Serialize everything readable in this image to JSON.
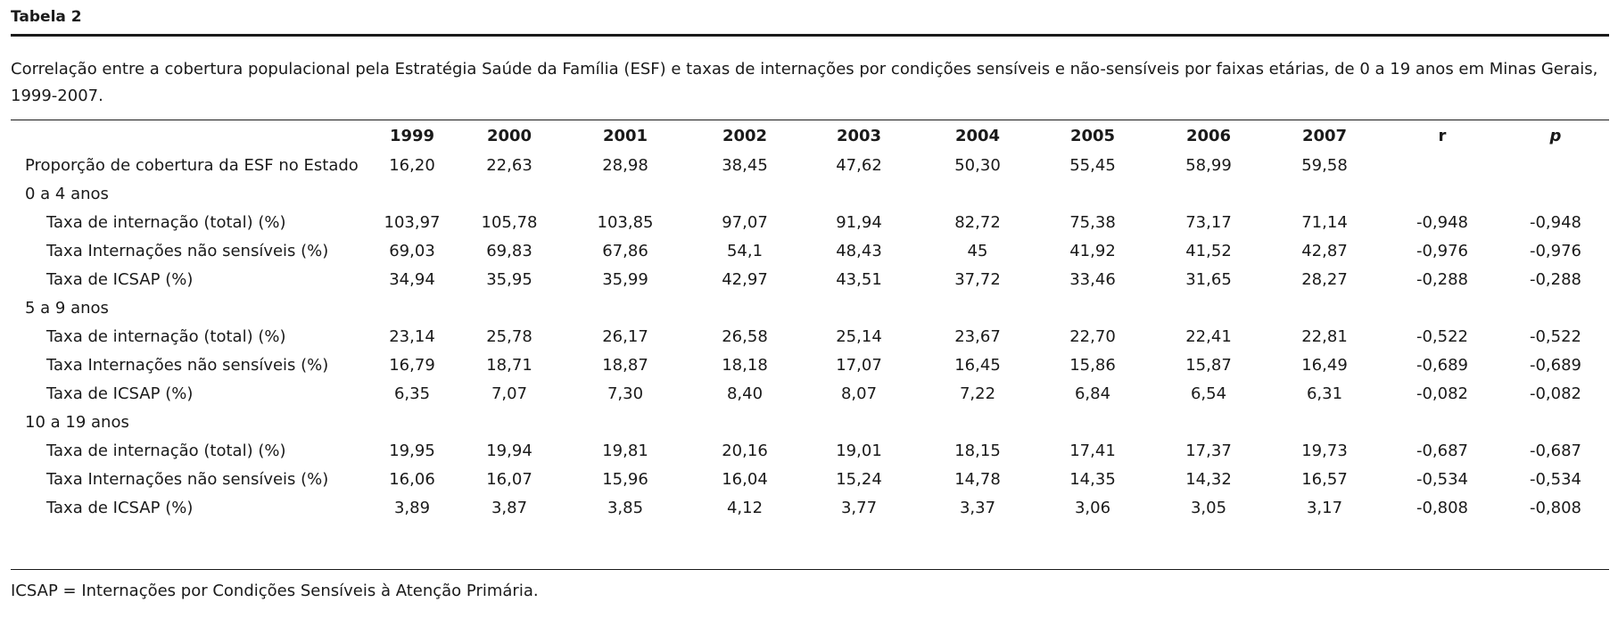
{
  "title": "Tabela 2",
  "caption": "Correlação entre a cobertura populacional pela Estratégia Saúde da Família (ESF) e taxas de internações por condições sensíveis e não-sensíveis por faixas etárias, de 0 a 19 anos em Minas Gerais, 1999-2007.",
  "headers": [
    "",
    "1999",
    "2000",
    "2001",
    "2002",
    "2003",
    "2004",
    "2005",
    "2006",
    "2007",
    "r",
    "p"
  ],
  "coverage": {
    "label": "Proporção de cobertura da ESF no Estado",
    "values": [
      "16,20",
      "22,63",
      "28,98",
      "38,45",
      "47,62",
      "50,30",
      "55,45",
      "58,99",
      "59,58",
      "",
      ""
    ]
  },
  "groups": [
    {
      "label": "0 a 4 anos",
      "rows": [
        {
          "label": "Taxa de internação (total) (%)",
          "values": [
            "103,97",
            "105,78",
            "103,85",
            "97,07",
            "91,94",
            "82,72",
            "75,38",
            "73,17",
            "71,14",
            "-0,948",
            "-0,948"
          ]
        },
        {
          "label": "Taxa Internações não sensíveis (%)",
          "values": [
            "69,03",
            "69,83",
            "67,86",
            "54,1",
            "48,43",
            "45",
            "41,92",
            "41,52",
            "42,87",
            "-0,976",
            "-0,976"
          ]
        },
        {
          "label": "Taxa de ICSAP (%)",
          "values": [
            "34,94",
            "35,95",
            "35,99",
            "42,97",
            "43,51",
            "37,72",
            "33,46",
            "31,65",
            "28,27",
            "-0,288",
            "-0,288"
          ]
        }
      ]
    },
    {
      "label": "5 a 9 anos",
      "rows": [
        {
          "label": "Taxa de internação (total) (%)",
          "values": [
            "23,14",
            "25,78",
            "26,17",
            "26,58",
            "25,14",
            "23,67",
            "22,70",
            "22,41",
            "22,81",
            "-0,522",
            "-0,522"
          ]
        },
        {
          "label": "Taxa Internações não sensíveis (%)",
          "values": [
            "16,79",
            "18,71",
            "18,87",
            "18,18",
            "17,07",
            "16,45",
            "15,86",
            "15,87",
            "16,49",
            "-0,689",
            "-0,689"
          ]
        },
        {
          "label": "Taxa de ICSAP (%)",
          "values": [
            "6,35",
            "7,07",
            "7,30",
            "8,40",
            "8,07",
            "7,22",
            "6,84",
            "6,54",
            "6,31",
            "-0,082",
            "-0,082"
          ]
        }
      ]
    },
    {
      "label": "10 a 19 anos",
      "rows": [
        {
          "label": "Taxa de internação (total) (%)",
          "values": [
            "19,95",
            "19,94",
            "19,81",
            "20,16",
            "19,01",
            "18,15",
            "17,41",
            "17,37",
            "19,73",
            "-0,687",
            "-0,687"
          ]
        },
        {
          "label": "Taxa Internações não sensíveis (%)",
          "values": [
            "16,06",
            "16,07",
            "15,96",
            "16,04",
            "15,24",
            "14,78",
            "14,35",
            "14,32",
            "16,57",
            "-0,534",
            "-0,534"
          ]
        },
        {
          "label": "Taxa de ICSAP (%)",
          "values": [
            "3,89",
            "3,87",
            "3,85",
            "4,12",
            "3,77",
            "3,37",
            "3,06",
            "3,05",
            "3,17",
            "-0,808",
            "-0,808"
          ]
        }
      ]
    }
  ],
  "footnote": "ICSAP = Internações por Condições Sensíveis à Atenção Primária."
}
